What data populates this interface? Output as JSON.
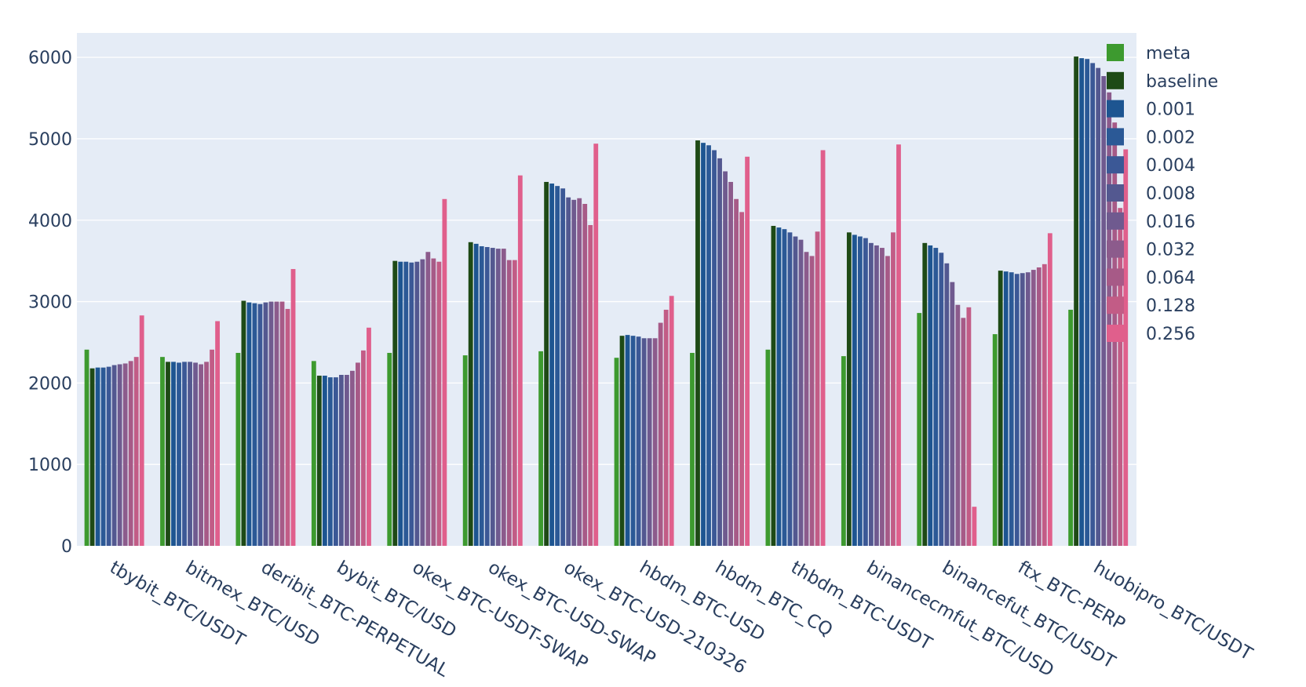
{
  "chart_data": {
    "type": "bar",
    "categories": [
      "tbybit_BTC/USDT",
      "bitmex_BTC/USD",
      "deribit_BTC-PERPETUAL",
      "bybit_BTC/USD",
      "okex_BTC-USDT-SWAP",
      "okex_BTC-USD-SWAP",
      "okex_BTC-USD-210326",
      "hbdm_BTC-USD",
      "hbdm_BTC_CQ",
      "thbdm_BTC-USDT",
      "binancecmfut_BTC/USD",
      "binancefut_BTC/USDT",
      "ftx_BTC-PERP",
      "huobipro_BTC/USDT"
    ],
    "series": [
      {
        "name": "meta",
        "color": "#3d9a2f",
        "values": [
          2410,
          2320,
          2370,
          2270,
          2370,
          2340,
          2390,
          2310,
          2370,
          2410,
          2330,
          2860,
          2600,
          2900
        ]
      },
      {
        "name": "baseline",
        "color": "#1e4a16",
        "values": [
          2180,
          2260,
          3010,
          2090,
          3500,
          3730,
          4470,
          2580,
          4980,
          3930,
          3850,
          3720,
          3380,
          6010
        ]
      },
      {
        "name": "0.001",
        "color": "#1d5591",
        "values": [
          2190,
          2260,
          2990,
          2090,
          3490,
          3710,
          4450,
          2590,
          4950,
          3910,
          3820,
          3690,
          3370,
          5990
        ]
      },
      {
        "name": "0.002",
        "color": "#2b5996",
        "values": [
          2190,
          2250,
          2980,
          2070,
          3490,
          3680,
          4420,
          2580,
          4920,
          3890,
          3800,
          3660,
          3360,
          5980
        ]
      },
      {
        "name": "0.004",
        "color": "#3b5896",
        "values": [
          2200,
          2260,
          2970,
          2070,
          3480,
          3670,
          4390,
          2570,
          4860,
          3850,
          3780,
          3600,
          3340,
          5930
        ]
      },
      {
        "name": "0.008",
        "color": "#535890",
        "values": [
          2220,
          2260,
          2990,
          2100,
          3490,
          3660,
          4280,
          2550,
          4760,
          3800,
          3720,
          3470,
          3350,
          5870
        ]
      },
      {
        "name": "0.016",
        "color": "#6f5a8f",
        "values": [
          2230,
          2250,
          3000,
          2100,
          3520,
          3650,
          4250,
          2550,
          4600,
          3760,
          3690,
          3240,
          3360,
          5770
        ]
      },
      {
        "name": "0.032",
        "color": "#8c5b8c",
        "values": [
          2240,
          2230,
          3000,
          2150,
          3610,
          3650,
          4270,
          2550,
          4470,
          3610,
          3660,
          2960,
          3390,
          5570
        ]
      },
      {
        "name": "0.064",
        "color": "#a75a87",
        "values": [
          2270,
          2260,
          3000,
          2250,
          3530,
          3510,
          4200,
          2740,
          4260,
          3560,
          3560,
          2800,
          3420,
          5200
        ]
      },
      {
        "name": "0.128",
        "color": "#c25c86",
        "values": [
          2320,
          2410,
          2910,
          2400,
          3490,
          3510,
          3940,
          2900,
          4100,
          3860,
          3850,
          2930,
          3460,
          4150
        ]
      },
      {
        "name": "0.256",
        "color": "#e05f8c",
        "values": [
          2830,
          2760,
          3400,
          2680,
          4260,
          4550,
          4940,
          3070,
          4780,
          4860,
          4930,
          480,
          3840,
          4870
        ]
      }
    ],
    "ylim": [
      0,
      6300
    ],
    "yticks": [
      0,
      1000,
      2000,
      3000,
      4000,
      5000,
      6000
    ],
    "grid": true,
    "legend_position": "top-right",
    "plot_bg": "#e5ecf6",
    "text_color": "#2a3f5f",
    "xtick_rotation_deg": 30
  }
}
